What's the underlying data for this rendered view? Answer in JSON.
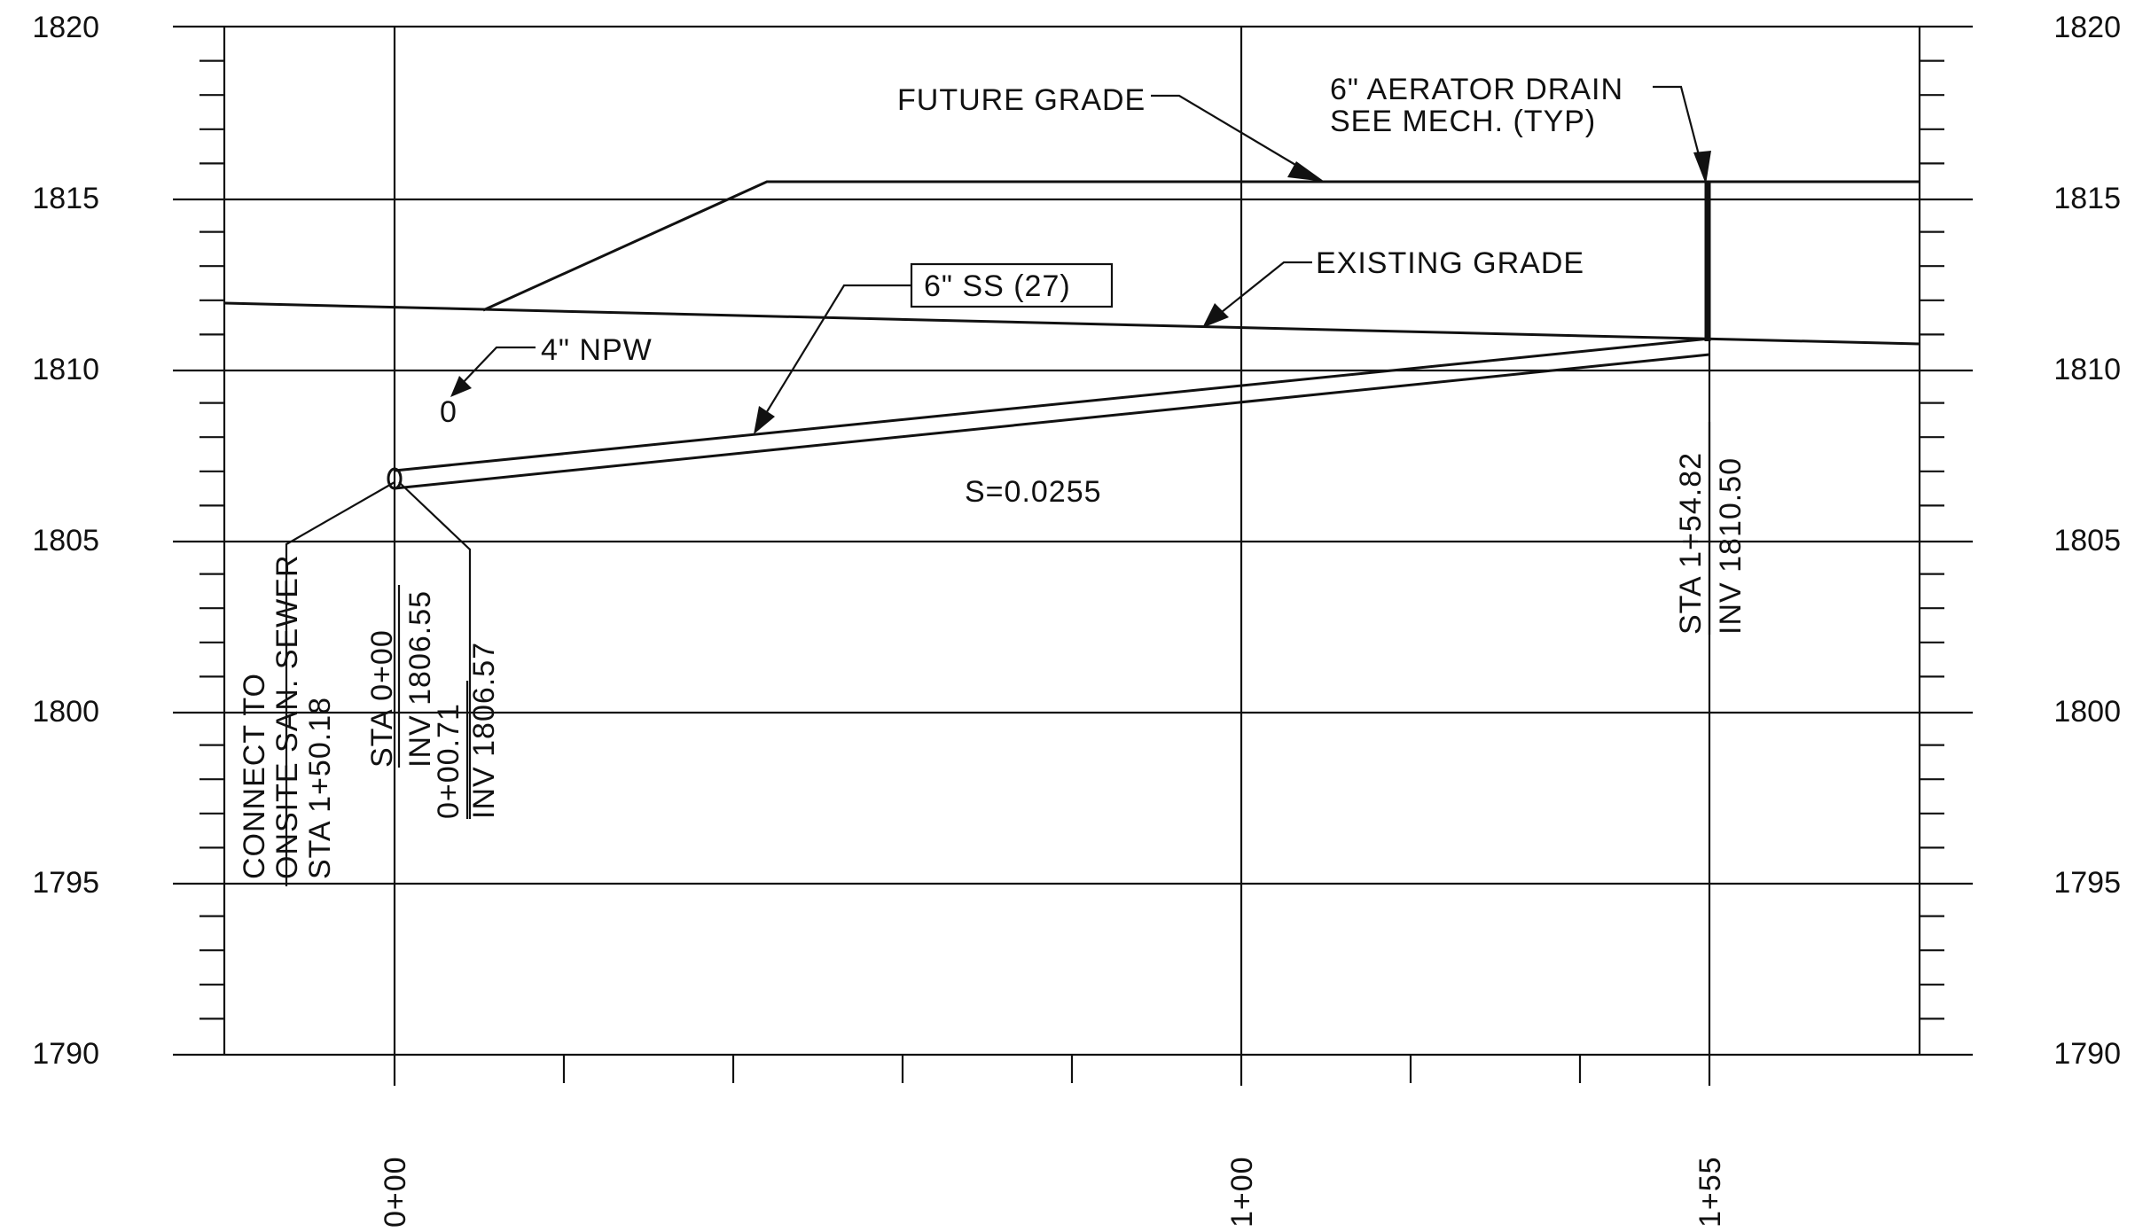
{
  "elevation_labels": [
    "1820",
    "1815",
    "1810",
    "1805",
    "1800",
    "1795",
    "1790"
  ],
  "station_labels": [
    "0+00",
    "1+00",
    "1+55"
  ],
  "callouts": {
    "future_grade": "FUTURE GRADE",
    "aerator_drain": [
      "6\" AERATOR DRAIN",
      "SEE MECH. (TYP)"
    ],
    "existing_grade": "EXISTING GRADE",
    "pipe": "6\" SS (27)",
    "npw": "4\" NPW",
    "npw_symbol": "0",
    "slope": "S=0.0255"
  },
  "vertical_notes": {
    "connect": [
      "CONNECT TO",
      "ONSITE SAN. SEWER",
      "STA 1+50.18"
    ],
    "start": [
      "STA 0+00",
      "INV 1806.55"
    ],
    "offset": [
      "0+00.71",
      "INV 1806.57"
    ],
    "end": [
      "STA 1+54.82",
      "INV 1810.50"
    ]
  }
}
